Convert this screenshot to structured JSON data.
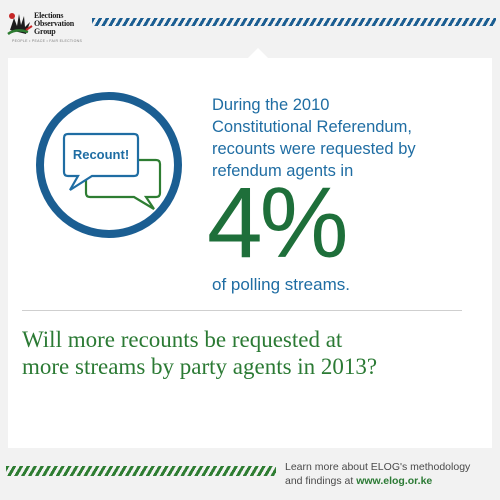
{
  "brand": {
    "logo_line1": "Elections",
    "logo_line2": "Observation",
    "logo_line3": "Group",
    "tagline": "PEOPLE • PEACE • FAIR ELECTIONS",
    "logo_colors": {
      "red": "#c62828",
      "green": "#2e7d32",
      "black": "#1c1c1c"
    }
  },
  "accent_colors": {
    "blue": "#1f6da3",
    "green": "#1e6f3a",
    "stripe_blue": "#1b5e92",
    "stripe_green": "#2e7d32"
  },
  "bubble": {
    "label": "Recount!"
  },
  "headline": {
    "line1": "During the 2010",
    "line2": "Constitutional Referendum,",
    "line3": "recounts were requested by",
    "line4": "refendum agents in"
  },
  "stat": {
    "value": "4%",
    "caption": "of polling streams."
  },
  "question": {
    "line1": "Will more recounts be requested at",
    "line2": "more streams by party agents in 2013?"
  },
  "footer": {
    "line1": "Learn more about ELOG's methodology",
    "line2_prefix": "and findings at ",
    "link": "www.elog.or.ke"
  }
}
